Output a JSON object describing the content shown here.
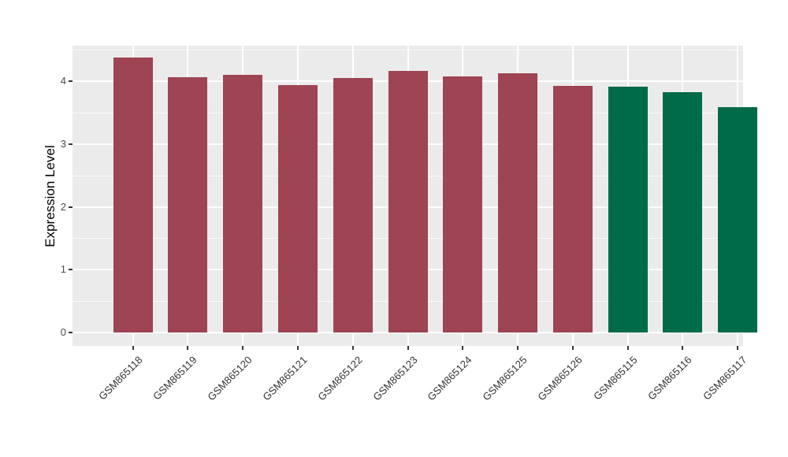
{
  "chart_data": {
    "type": "bar",
    "title": "",
    "xlabel": "",
    "ylabel": "Expression Level",
    "categories": [
      "GSM865118",
      "GSM865119",
      "GSM865120",
      "GSM865121",
      "GSM865122",
      "GSM865123",
      "GSM865124",
      "GSM865125",
      "GSM865126",
      "GSM865115",
      "GSM865116",
      "GSM865117"
    ],
    "values": [
      4.37,
      4.06,
      4.1,
      3.94,
      4.05,
      4.16,
      4.07,
      4.13,
      3.92,
      3.91,
      3.82,
      3.58
    ],
    "bar_colors": [
      "#9E4452",
      "#9E4452",
      "#9E4452",
      "#9E4452",
      "#9E4452",
      "#9E4452",
      "#9E4452",
      "#9E4452",
      "#9E4452",
      "#006B48",
      "#006B48",
      "#006B48"
    ],
    "y_ticks": [
      0,
      1,
      2,
      3,
      4
    ],
    "y_minor_ticks": [
      0.5,
      1.5,
      2.5,
      3.5,
      4.5
    ],
    "ylim_display": [
      -0.22,
      4.57
    ],
    "x_tick_rotation_deg": 45,
    "legend_position": "none",
    "grid": "on"
  },
  "colors": {
    "figure_background": "#FFFFFF",
    "panel_background": "#EBEBEB",
    "gridline": "#FFFFFF",
    "bar_red": "#9E4452",
    "bar_green": "#006B48",
    "axis_text": "#4D4D4D",
    "x_axis_text": "#333333",
    "axis_title": "#000000",
    "tick_mark": "#333333"
  }
}
